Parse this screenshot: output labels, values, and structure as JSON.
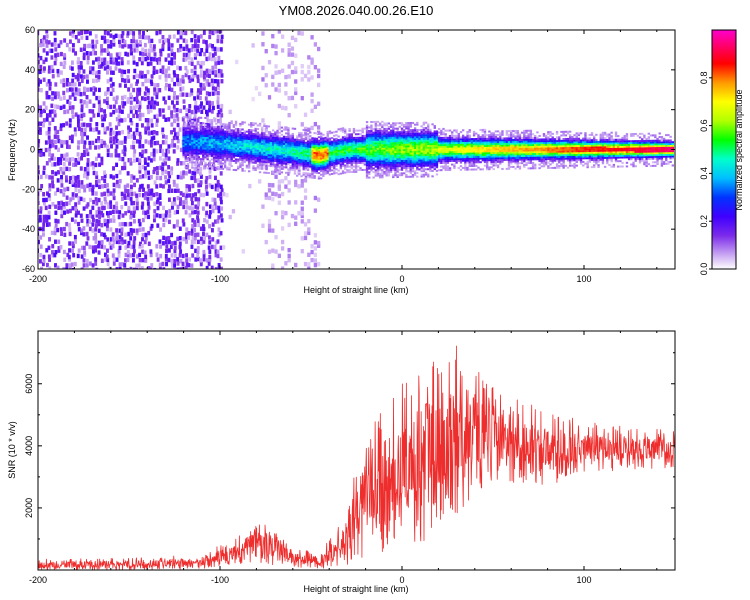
{
  "figure_title": "YM08.2026.040.00.26.E10",
  "chart_data": [
    {
      "type": "heatmap",
      "title": "YM08.2026.040.00.26.E10",
      "xlabel": "Height of straight line (km)",
      "ylabel": "Frequency (Hz)",
      "xlim": [
        -200,
        150
      ],
      "ylim": [
        -60,
        60
      ],
      "xticks": [
        -200,
        -100,
        0,
        100
      ],
      "xtick_labels": [
        "-200",
        "-100",
        "0",
        "100"
      ],
      "yticks": [
        -60,
        -40,
        -20,
        0,
        20,
        40,
        60
      ],
      "ytick_labels": [
        "-60",
        "-40",
        "-20",
        "0",
        "20",
        "40",
        "60"
      ],
      "colorbar": {
        "label": "Normalized spectral amplitude",
        "range": [
          0,
          1
        ],
        "ticks": [
          0.0,
          0.2,
          0.4,
          0.6,
          0.8
        ],
        "tick_labels": [
          "0.0",
          "0.2",
          "0.4",
          "0.6",
          "0.8"
        ],
        "colormap": [
          "#ffffff",
          "#c9a6f2",
          "#7b2bea",
          "#3f00ff",
          "#0033ff",
          "#00bfff",
          "#00ffcc",
          "#00ff00",
          "#b3ff00",
          "#ffff00",
          "#ff9900",
          "#ff0000",
          "#ff0066",
          "#ff00cc"
        ]
      },
      "regions": [
        {
          "name": "broadband noise",
          "x_range": [
            -200,
            -100
          ],
          "freq_range": [
            -60,
            60
          ],
          "amplitude": 0.15
        },
        {
          "name": "sparse noise band",
          "x_range": [
            -75,
            -45
          ],
          "freq_range": [
            -60,
            60
          ],
          "amplitude": 0.05
        },
        {
          "name": "signal ridge",
          "x_range": [
            -120,
            150
          ],
          "freq_center": 0,
          "amplitude_start": 0.35,
          "amplitude_end": 0.95
        }
      ],
      "ridge_center_hz": [
        {
          "x": -120,
          "f": 4
        },
        {
          "x": -100,
          "f": 3
        },
        {
          "x": -80,
          "f": 1
        },
        {
          "x": -60,
          "f": -1
        },
        {
          "x": -45,
          "f": -3
        },
        {
          "x": -30,
          "f": 0
        },
        {
          "x": -10,
          "f": 0
        },
        {
          "x": 0,
          "f": 0
        },
        {
          "x": 50,
          "f": 0
        },
        {
          "x": 150,
          "f": 0
        }
      ]
    },
    {
      "type": "line",
      "xlabel": "Height of straight line (km)",
      "ylabel": "SNR (10 * v/v)",
      "xlim": [
        -200,
        150
      ],
      "ylim": [
        0,
        7700
      ],
      "xticks": [
        -200,
        -100,
        0,
        100
      ],
      "xtick_labels": [
        "-200",
        "-100",
        "0",
        "100"
      ],
      "yticks": [
        2000,
        4000,
        6000
      ],
      "ytick_labels": [
        "2000",
        "4000",
        "6000"
      ],
      "series": [
        {
          "name": "SNR",
          "color": "#ee2d2d",
          "envelope": [
            {
              "x": -200,
              "low": 0,
              "high": 350
            },
            {
              "x": -150,
              "low": 0,
              "high": 380
            },
            {
              "x": -110,
              "low": 30,
              "high": 500
            },
            {
              "x": -90,
              "low": 150,
              "high": 1100
            },
            {
              "x": -80,
              "low": 200,
              "high": 1600
            },
            {
              "x": -70,
              "low": 150,
              "high": 1300
            },
            {
              "x": -60,
              "low": 100,
              "high": 700
            },
            {
              "x": -45,
              "low": 50,
              "high": 600
            },
            {
              "x": -30,
              "low": 100,
              "high": 1800
            },
            {
              "x": -25,
              "low": 200,
              "high": 3700
            },
            {
              "x": -15,
              "low": 500,
              "high": 5000
            },
            {
              "x": 0,
              "low": 600,
              "high": 6000
            },
            {
              "x": 10,
              "low": 800,
              "high": 6600
            },
            {
              "x": 25,
              "low": 1500,
              "high": 7000
            },
            {
              "x": 35,
              "low": 2000,
              "high": 7500
            },
            {
              "x": 45,
              "low": 2500,
              "high": 6200
            },
            {
              "x": 60,
              "low": 2800,
              "high": 5800
            },
            {
              "x": 80,
              "low": 2700,
              "high": 5100
            },
            {
              "x": 100,
              "low": 3100,
              "high": 4800
            },
            {
              "x": 125,
              "low": 3200,
              "high": 4600
            },
            {
              "x": 150,
              "low": 3300,
              "high": 4500
            }
          ]
        }
      ]
    }
  ]
}
